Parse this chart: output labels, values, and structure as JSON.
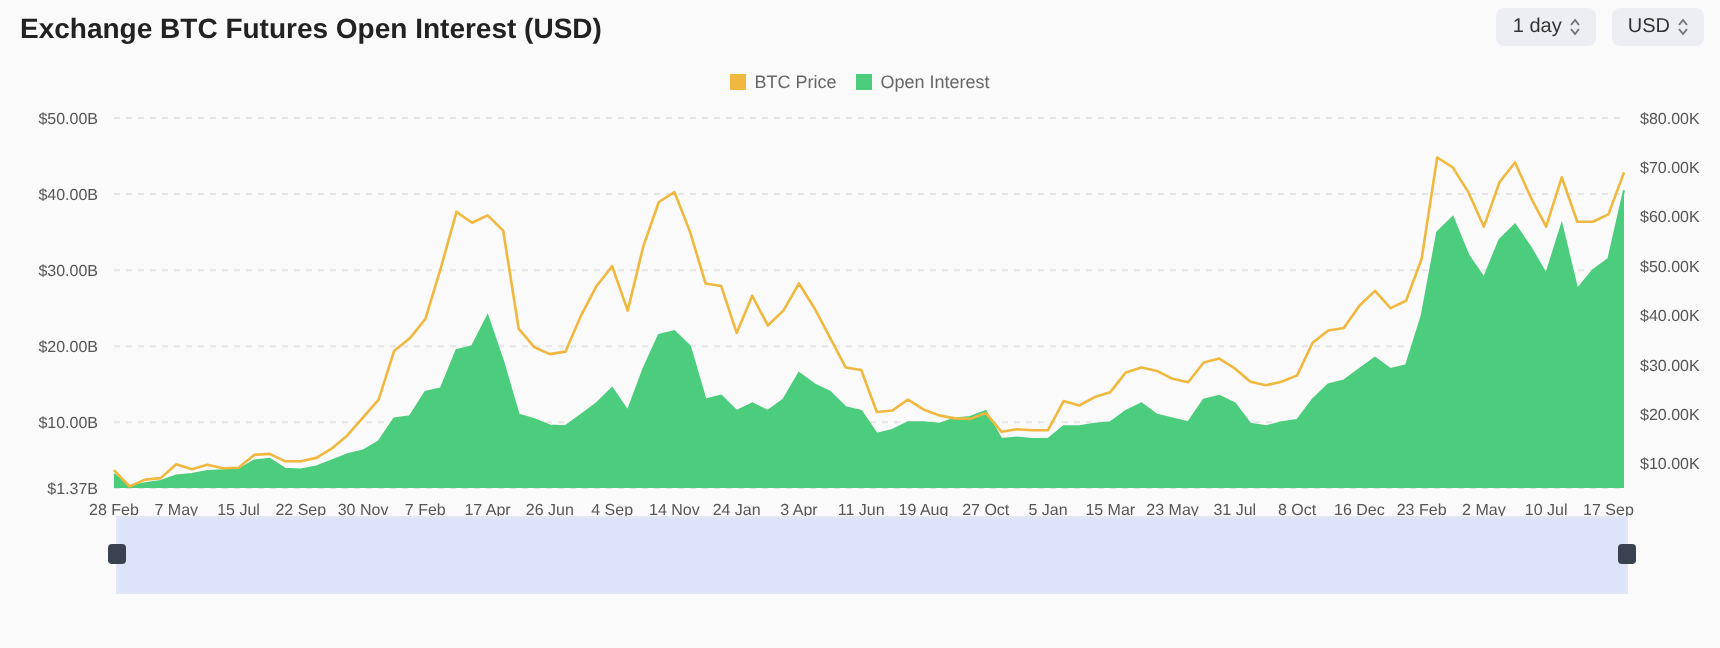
{
  "chart_data": {
    "type": "area",
    "title": "Exchange BTC Futures Open Interest (USD)",
    "annotations": [
      "1 day",
      "USD"
    ],
    "categories": [
      "28 Feb",
      null,
      null,
      null,
      "7 May",
      null,
      null,
      null,
      "15 Jul",
      null,
      null,
      null,
      "22 Sep",
      null,
      null,
      null,
      "30 Nov",
      null,
      null,
      null,
      "7 Feb",
      null,
      null,
      null,
      "17 Apr",
      null,
      null,
      null,
      "26 Jun",
      null,
      null,
      null,
      "4 Sep",
      null,
      null,
      null,
      "14 Nov",
      null,
      null,
      null,
      "24 Jan",
      null,
      null,
      null,
      "3 Apr",
      null,
      null,
      null,
      "11 Jun",
      null,
      null,
      null,
      "19 Aug",
      null,
      null,
      null,
      "27 Oct",
      null,
      null,
      null,
      "5 Jan",
      null,
      null,
      null,
      "15 Mar",
      null,
      null,
      null,
      "23 May",
      null,
      null,
      null,
      "31 Jul",
      null,
      null,
      null,
      "8 Oct",
      null,
      null,
      null,
      "16 Dec",
      null,
      null,
      null,
      "23 Feb",
      null,
      null,
      null,
      "2 May",
      null,
      null,
      null,
      "10 Jul",
      null,
      null,
      null,
      "17 Sep",
      null
    ],
    "series": [
      {
        "name": "BTC Price",
        "type": "line",
        "axis": "y2",
        "color": "#f0b83f",
        "values": [
          8.7,
          5.4,
          6.8,
          7.1,
          9.9,
          8.9,
          9.8,
          9.1,
          9.2,
          11.8,
          12.0,
          10.5,
          10.5,
          11.2,
          13.1,
          15.8,
          19.4,
          23.0,
          32.9,
          35.4,
          39.3,
          49.7,
          61.0,
          58.8,
          60.3,
          57.2,
          37.3,
          33.6,
          32.2,
          32.7,
          40.0,
          46.0,
          50.0,
          41.0,
          54.0,
          63.0,
          65.0,
          57.0,
          46.5,
          46.0,
          36.5,
          44.0,
          38.0,
          41.0,
          46.5,
          41.5,
          35.5,
          29.5,
          29.0,
          20.5,
          20.8,
          23.0,
          21.0,
          19.8,
          19.2,
          19.1,
          20.3,
          16.5,
          17.0,
          16.8,
          16.8,
          22.7,
          21.8,
          23.5,
          24.5,
          28.5,
          29.5,
          28.8,
          27.2,
          26.5,
          30.5,
          31.3,
          29.3,
          26.6,
          25.9,
          26.6,
          27.9,
          34.5,
          37.0,
          37.5,
          42.0,
          45.0,
          41.5,
          43.0,
          51.5,
          72.0,
          70.0,
          65.0,
          58.0,
          67.0,
          71.0,
          64.0,
          58.0,
          68.0,
          59.0,
          59.0,
          60.5,
          69.0
        ]
      },
      {
        "name": "Open Interest",
        "color": "#4ccd7d",
        "values": [
          3.2,
          1.6,
          2.0,
          2.3,
          3.0,
          3.2,
          3.6,
          3.7,
          3.8,
          5.0,
          5.2,
          3.9,
          3.8,
          4.2,
          5.0,
          5.8,
          6.3,
          7.5,
          10.5,
          10.8,
          14.0,
          14.5,
          19.5,
          20.0,
          24.0,
          18.0,
          11.0,
          10.4,
          9.6,
          9.5,
          11.0,
          12.5,
          14.5,
          11.5,
          17.0,
          21.5,
          22.0,
          20.0,
          13.0,
          13.5,
          11.5,
          12.5,
          11.5,
          13.0,
          16.5,
          15.0,
          14.0,
          12.0,
          11.5,
          8.5,
          9.0,
          10.0,
          10.0,
          9.8,
          10.5,
          10.7,
          11.5,
          7.8,
          8.0,
          7.8,
          7.8,
          9.5,
          9.5,
          9.8,
          10.0,
          11.5,
          12.5,
          11.0,
          10.5,
          10.0,
          13.0,
          13.5,
          12.5,
          9.8,
          9.5,
          10.0,
          10.3,
          13.0,
          15.0,
          15.5,
          17.0,
          18.5,
          17.0,
          17.5,
          24.0,
          35.0,
          37.0,
          32.0,
          29.0,
          34.0,
          36.0,
          33.0,
          29.5,
          36.0,
          27.5,
          30.0,
          31.5,
          40.5
        ]
      }
    ],
    "ylim": [
      1.37,
      50
    ],
    "yticks": [
      {
        "value": 1.37,
        "label": "$1.37B"
      },
      {
        "value": 10,
        "label": "$10.00B"
      },
      {
        "value": 20,
        "label": "$20.00B"
      },
      {
        "value": 30,
        "label": "$30.00B"
      },
      {
        "value": 40,
        "label": "$40.00B"
      },
      {
        "value": 50,
        "label": "$50.00B"
      }
    ],
    "y2lim": [
      5.1,
      80
    ],
    "y2ticks": [
      {
        "value": 10,
        "label": "$10.00K"
      },
      {
        "value": 20,
        "label": "$20.00K"
      },
      {
        "value": 30,
        "label": "$30.00K"
      },
      {
        "value": 40,
        "label": "$40.00K"
      },
      {
        "value": 50,
        "label": "$50.00K"
      },
      {
        "value": 60,
        "label": "$60.00K"
      },
      {
        "value": 70,
        "label": "$70.00K"
      },
      {
        "value": 80,
        "label": "$80.00K"
      }
    ],
    "grid": "y",
    "legend": "top",
    "marker": "none"
  }
}
